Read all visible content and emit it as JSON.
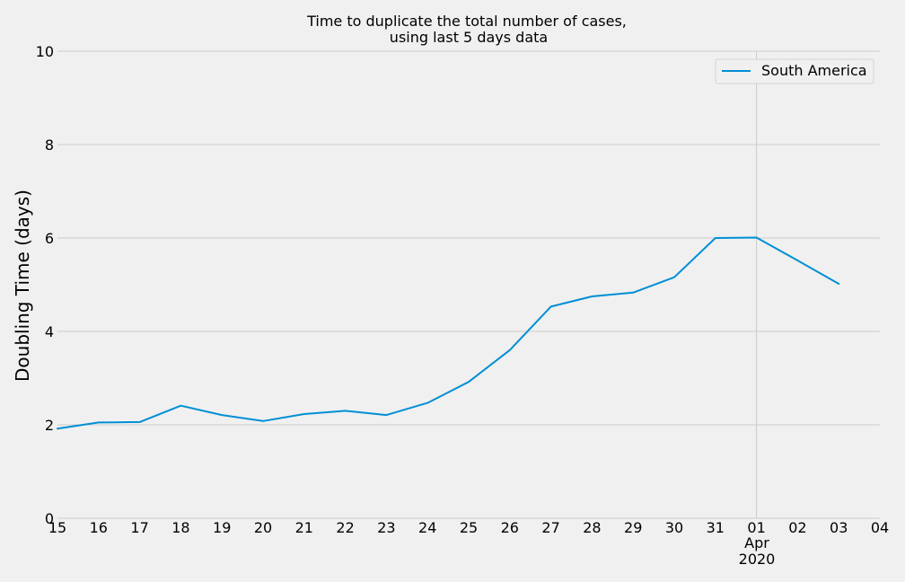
{
  "chart_data": {
    "type": "line",
    "title_line1": "Time to duplicate the total number of cases,",
    "title_line2": "using last 5 days data",
    "xlabel": "",
    "ylabel": "Doubling Time (days)",
    "ylim": [
      0,
      10
    ],
    "yticks": [
      "0",
      "2",
      "4",
      "6",
      "8",
      "10"
    ],
    "xticks": [
      "15",
      "16",
      "17",
      "18",
      "19",
      "20",
      "21",
      "22",
      "23",
      "24",
      "25",
      "26",
      "27",
      "28",
      "29",
      "30",
      "31",
      "01",
      "02",
      "03",
      "04"
    ],
    "month_label": "Apr",
    "year_label": "2020",
    "grid": true,
    "legend_position": "top-right",
    "series": [
      {
        "name": "South America",
        "color": "#008fd5",
        "x": [
          "2020-03-15",
          "2020-03-16",
          "2020-03-17",
          "2020-03-18",
          "2020-03-19",
          "2020-03-20",
          "2020-03-21",
          "2020-03-22",
          "2020-03-23",
          "2020-03-24",
          "2020-03-25",
          "2020-03-26",
          "2020-03-27",
          "2020-03-28",
          "2020-03-29",
          "2020-03-30",
          "2020-03-31",
          "2020-04-01",
          "2020-04-02",
          "2020-04-03"
        ],
        "values": [
          1.92,
          2.05,
          2.06,
          2.41,
          2.21,
          2.08,
          2.23,
          2.3,
          2.21,
          2.47,
          2.92,
          3.6,
          4.53,
          4.75,
          4.83,
          5.16,
          6.0,
          6.01,
          5.52,
          5.02
        ]
      }
    ]
  }
}
